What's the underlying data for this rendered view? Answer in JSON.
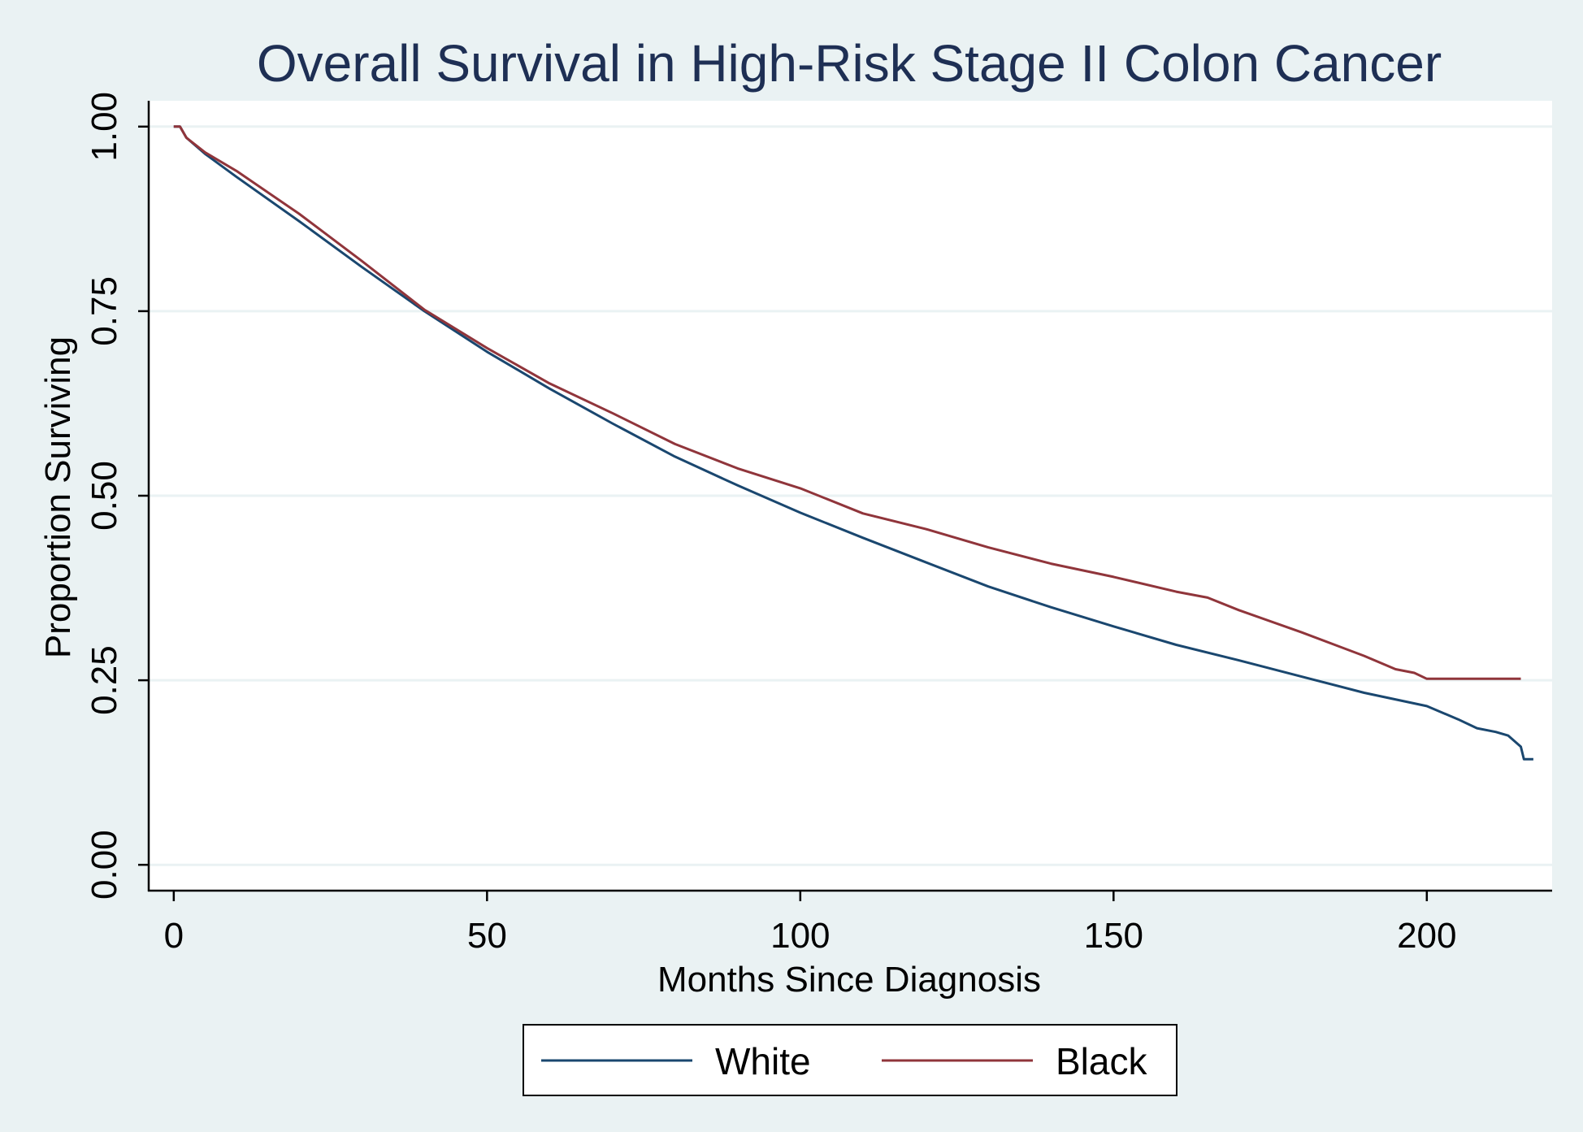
{
  "chart_data": {
    "type": "line",
    "title": "Overall Survival in High-Risk Stage II Colon Cancer",
    "xlabel": "Months Since Diagnosis",
    "ylabel": "Proportion Surviving",
    "xlim": [
      -4,
      220
    ],
    "ylim": [
      -0.035,
      1.035
    ],
    "x_ticks": [
      0,
      50,
      100,
      150,
      200
    ],
    "x_tick_labels": [
      "0",
      "50",
      "100",
      "150",
      "200"
    ],
    "y_ticks": [
      0,
      0.25,
      0.5,
      0.75,
      1
    ],
    "y_tick_labels": [
      "0.00",
      "0.25",
      "0.50",
      "0.75",
      "1.00"
    ],
    "grid": "horizontal",
    "legend_position": "bottom",
    "series": [
      {
        "name": "White",
        "color": "#1a476f",
        "points": [
          [
            0,
            1
          ],
          [
            1,
            1
          ],
          [
            2,
            0.985
          ],
          [
            5,
            0.963
          ],
          [
            10,
            0.932
          ],
          [
            20,
            0.872
          ],
          [
            30,
            0.81
          ],
          [
            40,
            0.75
          ],
          [
            50,
            0.695
          ],
          [
            60,
            0.645
          ],
          [
            70,
            0.598
          ],
          [
            80,
            0.553
          ],
          [
            90,
            0.514
          ],
          [
            100,
            0.477
          ],
          [
            110,
            0.443
          ],
          [
            120,
            0.41
          ],
          [
            130,
            0.377
          ],
          [
            140,
            0.349
          ],
          [
            150,
            0.323
          ],
          [
            160,
            0.298
          ],
          [
            170,
            0.277
          ],
          [
            180,
            0.255
          ],
          [
            190,
            0.233
          ],
          [
            200,
            0.215
          ],
          [
            205,
            0.197
          ],
          [
            208,
            0.185
          ],
          [
            211,
            0.18
          ],
          [
            213,
            0.175
          ],
          [
            215,
            0.16
          ],
          [
            215.5,
            0.143
          ],
          [
            217,
            0.143
          ]
        ]
      },
      {
        "name": "Black",
        "color": "#90353b",
        "points": [
          [
            0,
            1
          ],
          [
            1,
            1
          ],
          [
            2,
            0.985
          ],
          [
            5,
            0.965
          ],
          [
            10,
            0.94
          ],
          [
            20,
            0.882
          ],
          [
            30,
            0.818
          ],
          [
            40,
            0.752
          ],
          [
            50,
            0.7
          ],
          [
            60,
            0.652
          ],
          [
            70,
            0.612
          ],
          [
            80,
            0.57
          ],
          [
            90,
            0.537
          ],
          [
            100,
            0.51
          ],
          [
            110,
            0.476
          ],
          [
            120,
            0.455
          ],
          [
            130,
            0.43
          ],
          [
            140,
            0.408
          ],
          [
            150,
            0.39
          ],
          [
            160,
            0.37
          ],
          [
            165,
            0.362
          ],
          [
            170,
            0.345
          ],
          [
            180,
            0.315
          ],
          [
            190,
            0.283
          ],
          [
            195,
            0.265
          ],
          [
            198,
            0.26
          ],
          [
            200,
            0.252
          ],
          [
            215,
            0.252
          ]
        ]
      }
    ]
  }
}
